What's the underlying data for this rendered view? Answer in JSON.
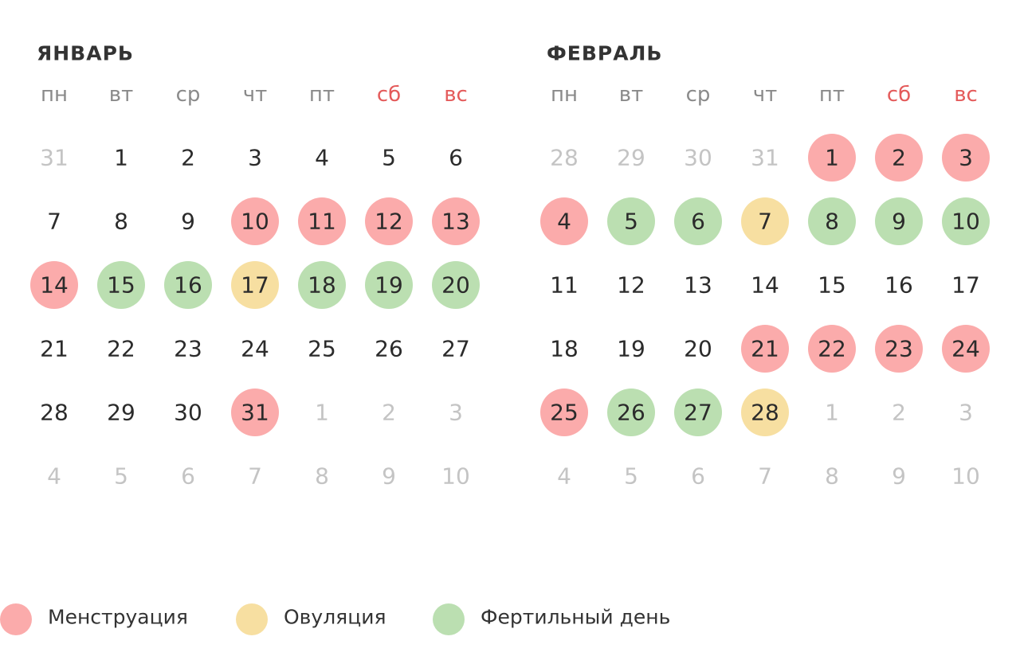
{
  "legend": [
    {
      "label": "Менструация",
      "color": "#fbabab"
    },
    {
      "label": "Овуляция",
      "color": "#f7dfa1"
    },
    {
      "label": "Фертильный день",
      "color": "#bbdfb1"
    }
  ],
  "months": [
    {
      "title": "ЯНВАРЬ",
      "weekdays": [
        {
          "label": "пн"
        },
        {
          "label": "вт"
        },
        {
          "label": "ср"
        },
        {
          "label": "чт"
        },
        {
          "label": "пт"
        },
        {
          "label": "сб",
          "weekend": true
        },
        {
          "label": "вс",
          "weekend": true
        }
      ],
      "weeks": [
        [
          {
            "day": 31,
            "muted": true
          },
          {
            "day": 1
          },
          {
            "day": 2
          },
          {
            "day": 3
          },
          {
            "day": 4
          },
          {
            "day": 5
          },
          {
            "day": 6
          }
        ],
        [
          {
            "day": 7
          },
          {
            "day": 8
          },
          {
            "day": 9
          },
          {
            "day": 10,
            "mark": 0
          },
          {
            "day": 11,
            "mark": 0
          },
          {
            "day": 12,
            "mark": 0
          },
          {
            "day": 13,
            "mark": 0
          }
        ],
        [
          {
            "day": 14,
            "mark": 0
          },
          {
            "day": 15,
            "mark": 2
          },
          {
            "day": 16,
            "mark": 2
          },
          {
            "day": 17,
            "mark": 1
          },
          {
            "day": 18,
            "mark": 2
          },
          {
            "day": 19,
            "mark": 2
          },
          {
            "day": 20,
            "mark": 2
          }
        ],
        [
          {
            "day": 21
          },
          {
            "day": 22
          },
          {
            "day": 23
          },
          {
            "day": 24
          },
          {
            "day": 25
          },
          {
            "day": 26
          },
          {
            "day": 27
          }
        ],
        [
          {
            "day": 28
          },
          {
            "day": 29
          },
          {
            "day": 30
          },
          {
            "day": 31,
            "mark": 0
          },
          {
            "day": 1,
            "muted": true
          },
          {
            "day": 2,
            "muted": true
          },
          {
            "day": 3,
            "muted": true
          }
        ],
        [
          {
            "day": 4,
            "muted": true
          },
          {
            "day": 5,
            "muted": true
          },
          {
            "day": 6,
            "muted": true
          },
          {
            "day": 7,
            "muted": true
          },
          {
            "day": 8,
            "muted": true
          },
          {
            "day": 9,
            "muted": true
          },
          {
            "day": 10,
            "muted": true
          }
        ]
      ]
    },
    {
      "title": "ФЕВРАЛЬ",
      "weekdays": [
        {
          "label": "пн"
        },
        {
          "label": "вт"
        },
        {
          "label": "ср"
        },
        {
          "label": "чт"
        },
        {
          "label": "пт"
        },
        {
          "label": "сб",
          "weekend": true
        },
        {
          "label": "вс",
          "weekend": true
        }
      ],
      "weeks": [
        [
          {
            "day": 28,
            "muted": true
          },
          {
            "day": 29,
            "muted": true
          },
          {
            "day": 30,
            "muted": true
          },
          {
            "day": 31,
            "muted": true
          },
          {
            "day": 1,
            "mark": 0
          },
          {
            "day": 2,
            "mark": 0
          },
          {
            "day": 3,
            "mark": 0
          }
        ],
        [
          {
            "day": 4,
            "mark": 0
          },
          {
            "day": 5,
            "mark": 2
          },
          {
            "day": 6,
            "mark": 2
          },
          {
            "day": 7,
            "mark": 1
          },
          {
            "day": 8,
            "mark": 2
          },
          {
            "day": 9,
            "mark": 2
          },
          {
            "day": 10,
            "mark": 2
          }
        ],
        [
          {
            "day": 11
          },
          {
            "day": 12
          },
          {
            "day": 13
          },
          {
            "day": 14
          },
          {
            "day": 15
          },
          {
            "day": 16
          },
          {
            "day": 17
          }
        ],
        [
          {
            "day": 18
          },
          {
            "day": 19
          },
          {
            "day": 20
          },
          {
            "day": 21,
            "mark": 0
          },
          {
            "day": 22,
            "mark": 0
          },
          {
            "day": 23,
            "mark": 0
          },
          {
            "day": 24,
            "mark": 0
          }
        ],
        [
          {
            "day": 25,
            "mark": 0
          },
          {
            "day": 26,
            "mark": 2
          },
          {
            "day": 27,
            "mark": 2
          },
          {
            "day": 28,
            "mark": 1
          },
          {
            "day": 1,
            "muted": true
          },
          {
            "day": 2,
            "muted": true
          },
          {
            "day": 3,
            "muted": true
          }
        ],
        [
          {
            "day": 4,
            "muted": true
          },
          {
            "day": 5,
            "muted": true
          },
          {
            "day": 6,
            "muted": true
          },
          {
            "day": 7,
            "muted": true
          },
          {
            "day": 8,
            "muted": true
          },
          {
            "day": 9,
            "muted": true
          },
          {
            "day": 10,
            "muted": true
          }
        ]
      ]
    }
  ]
}
